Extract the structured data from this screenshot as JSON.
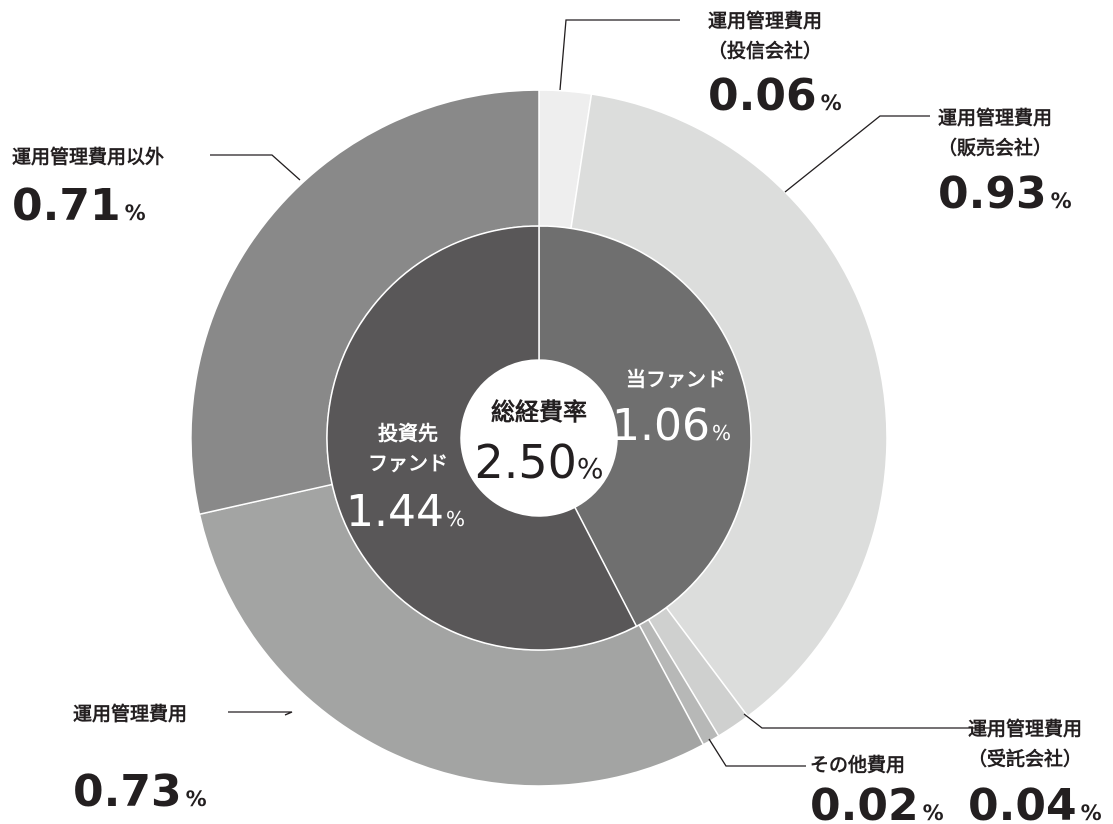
{
  "chart_data": {
    "type": "donut",
    "unit": "%",
    "center": {
      "label": "総経費率",
      "value": 2.5,
      "text": "2.50",
      "unit": "%"
    },
    "inner_ring": [
      {
        "label": "当ファンド",
        "value": 1.06,
        "text": "1.06",
        "color": "#6f6f6f"
      },
      {
        "label": "投資先ファンド",
        "label_lines": [
          "投資先",
          "ファンド"
        ],
        "value": 1.44,
        "text": "1.44",
        "color": "#595758"
      }
    ],
    "outer_ring": [
      {
        "label": "運用管理費用（投信会社）",
        "label_lines": [
          "運用管理費用",
          "（投信会社）"
        ],
        "value": 0.06,
        "text": "0.06",
        "color": "#eeeeee"
      },
      {
        "label": "運用管理費用（販売会社）",
        "label_lines": [
          "運用管理費用",
          "（販売会社）"
        ],
        "value": 0.93,
        "text": "0.93",
        "color": "#dcdddc"
      },
      {
        "label": "運用管理費用（受託会社）",
        "label_lines": [
          "運用管理費用",
          "（受託会社）"
        ],
        "value": 0.04,
        "text": "0.04",
        "color": "#cfd0cf"
      },
      {
        "label": "その他費用",
        "label_lines": [
          "その他費用"
        ],
        "value": 0.02,
        "text": "0.02",
        "color": "#b7b8b7"
      },
      {
        "label": "運用管理費用",
        "label_lines": [
          "運用管理費用"
        ],
        "value": 0.73,
        "text": "0.73",
        "color": "#a3a4a3"
      },
      {
        "label": "運用管理費用以外",
        "label_lines": [
          "運用管理費用以外"
        ],
        "value": 0.71,
        "text": "0.71",
        "color": "#898989"
      }
    ]
  }
}
